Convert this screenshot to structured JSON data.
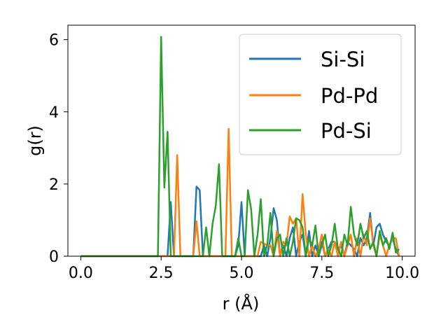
{
  "chart_data": {
    "type": "line",
    "xlabel": "r (Å)",
    "ylabel": "g(r)",
    "xlim": [
      -0.4,
      10.4
    ],
    "ylim": [
      0,
      6.4
    ],
    "xticks": [
      0.0,
      2.5,
      5.0,
      7.5,
      10.0
    ],
    "xtick_labels": [
      "0.0",
      "2.5",
      "5.0",
      "7.5",
      "10.0"
    ],
    "yticks": [
      0,
      2,
      4,
      6
    ],
    "ytick_labels": [
      "0",
      "2",
      "4",
      "6"
    ],
    "grid": false,
    "legend_position": "top-right",
    "series": [
      {
        "name": "Si-Si",
        "color": "#1f77b4",
        "points": [
          [
            0.0,
            0
          ],
          [
            2.6,
            0
          ],
          [
            2.7,
            0
          ],
          [
            2.8,
            1.5
          ],
          [
            2.9,
            0
          ],
          [
            3.0,
            0
          ],
          [
            3.1,
            0
          ],
          [
            3.2,
            0
          ],
          [
            3.3,
            0
          ],
          [
            3.4,
            0
          ],
          [
            3.5,
            0
          ],
          [
            3.6,
            1.93
          ],
          [
            3.7,
            1.83
          ],
          [
            3.8,
            0
          ],
          [
            3.9,
            0
          ],
          [
            4.0,
            0
          ],
          [
            4.1,
            0
          ],
          [
            4.2,
            0
          ],
          [
            4.3,
            0
          ],
          [
            4.4,
            0
          ],
          [
            4.5,
            0
          ],
          [
            4.6,
            0
          ],
          [
            4.7,
            0
          ],
          [
            4.8,
            0
          ],
          [
            4.9,
            0.3
          ],
          [
            5.0,
            1.5
          ],
          [
            5.1,
            0
          ],
          [
            5.2,
            0
          ],
          [
            5.3,
            0
          ],
          [
            5.4,
            0
          ],
          [
            5.5,
            0
          ],
          [
            5.6,
            0
          ],
          [
            5.7,
            0.3
          ],
          [
            5.8,
            0
          ],
          [
            5.9,
            0.5
          ],
          [
            6.0,
            1.33
          ],
          [
            6.1,
            1.0
          ],
          [
            6.2,
            0
          ],
          [
            6.3,
            0.3
          ],
          [
            6.4,
            0
          ],
          [
            6.5,
            0.5
          ],
          [
            6.6,
            0.8
          ],
          [
            6.7,
            0
          ],
          [
            6.8,
            0.4
          ],
          [
            6.9,
            0.6
          ],
          [
            7.0,
            0
          ],
          [
            7.1,
            0.7
          ],
          [
            7.2,
            0
          ],
          [
            7.3,
            0.3
          ],
          [
            7.4,
            0
          ],
          [
            7.5,
            0.4
          ],
          [
            7.6,
            0
          ],
          [
            7.7,
            0.2
          ],
          [
            7.8,
            0.4
          ],
          [
            7.9,
            0.4
          ],
          [
            8.0,
            0.2
          ],
          [
            8.1,
            0.3
          ],
          [
            8.2,
            0
          ],
          [
            8.3,
            0.4
          ],
          [
            8.4,
            0.3
          ],
          [
            8.5,
            0.2
          ],
          [
            8.6,
            0
          ],
          [
            8.7,
            0.5
          ],
          [
            8.8,
            0.3
          ],
          [
            8.9,
            0.5
          ],
          [
            9.0,
            1.2
          ],
          [
            9.1,
            0.3
          ],
          [
            9.2,
            0.8
          ],
          [
            9.3,
            0.9
          ],
          [
            9.4,
            0.6
          ],
          [
            9.5,
            0.4
          ],
          [
            9.6,
            0.3
          ],
          [
            9.7,
            0.5
          ],
          [
            9.8,
            0.2
          ],
          [
            9.9,
            0
          ]
        ]
      },
      {
        "name": "Pd-Pd",
        "color": "#ff7f0e",
        "points": [
          [
            0.0,
            0
          ],
          [
            2.7,
            0
          ],
          [
            2.8,
            0
          ],
          [
            2.9,
            0
          ],
          [
            3.0,
            2.8
          ],
          [
            3.1,
            0
          ],
          [
            3.2,
            0
          ],
          [
            3.3,
            0
          ],
          [
            3.4,
            0
          ],
          [
            3.5,
            0
          ],
          [
            3.6,
            0.97
          ],
          [
            3.7,
            0
          ],
          [
            3.8,
            0
          ],
          [
            3.9,
            0
          ],
          [
            4.0,
            0
          ],
          [
            4.1,
            0
          ],
          [
            4.2,
            0
          ],
          [
            4.3,
            0
          ],
          [
            4.4,
            0
          ],
          [
            4.5,
            0
          ],
          [
            4.6,
            3.53
          ],
          [
            4.7,
            0
          ],
          [
            4.8,
            0
          ],
          [
            4.9,
            0
          ],
          [
            5.0,
            0
          ],
          [
            5.1,
            0
          ],
          [
            5.2,
            0
          ],
          [
            5.3,
            0
          ],
          [
            5.4,
            0
          ],
          [
            5.5,
            0
          ],
          [
            5.6,
            0.4
          ],
          [
            5.7,
            0.35
          ],
          [
            5.8,
            0.3
          ],
          [
            5.9,
            0.3
          ],
          [
            6.0,
            0
          ],
          [
            6.1,
            0.7
          ],
          [
            6.2,
            0
          ],
          [
            6.3,
            0.4
          ],
          [
            6.4,
            0.3
          ],
          [
            6.5,
            1.1
          ],
          [
            6.6,
            0.9
          ],
          [
            6.7,
            1.05
          ],
          [
            6.8,
            0
          ],
          [
            6.9,
            1.72
          ],
          [
            7.0,
            0.6
          ],
          [
            7.1,
            0
          ],
          [
            7.2,
            0.3
          ],
          [
            7.3,
            0
          ],
          [
            7.4,
            0.2
          ],
          [
            7.5,
            0.6
          ],
          [
            7.6,
            0
          ],
          [
            7.7,
            0.2
          ],
          [
            7.8,
            0
          ],
          [
            7.9,
            0.4
          ],
          [
            8.0,
            0
          ],
          [
            8.1,
            0.4
          ],
          [
            8.2,
            0
          ],
          [
            8.3,
            0.3
          ],
          [
            8.4,
            0.6
          ],
          [
            8.5,
            0
          ],
          [
            8.6,
            0.5
          ],
          [
            8.7,
            0
          ],
          [
            8.8,
            0.6
          ],
          [
            8.9,
            0.3
          ],
          [
            9.0,
            1.05
          ],
          [
            9.1,
            0.3
          ],
          [
            9.2,
            0
          ],
          [
            9.3,
            0.6
          ],
          [
            9.4,
            0.3
          ],
          [
            9.5,
            0
          ],
          [
            9.6,
            0.3
          ],
          [
            9.7,
            0.5
          ],
          [
            9.8,
            0.5
          ],
          [
            9.9,
            0
          ]
        ]
      },
      {
        "name": "Pd-Si",
        "color": "#2ca02c",
        "points": [
          [
            0.0,
            0
          ],
          [
            2.3,
            0
          ],
          [
            2.4,
            0
          ],
          [
            2.5,
            6.08
          ],
          [
            2.6,
            1.9
          ],
          [
            2.7,
            3.45
          ],
          [
            2.8,
            0
          ],
          [
            2.9,
            0
          ],
          [
            3.0,
            0
          ],
          [
            3.1,
            0
          ],
          [
            3.2,
            0
          ],
          [
            3.3,
            0
          ],
          [
            3.4,
            0
          ],
          [
            3.5,
            0
          ],
          [
            3.6,
            0
          ],
          [
            3.7,
            0
          ],
          [
            3.8,
            0
          ],
          [
            3.9,
            0.8
          ],
          [
            4.0,
            0
          ],
          [
            4.1,
            0.9
          ],
          [
            4.2,
            1.4
          ],
          [
            4.3,
            2.55
          ],
          [
            4.4,
            0
          ],
          [
            4.5,
            0
          ],
          [
            4.6,
            0
          ],
          [
            4.7,
            0
          ],
          [
            4.8,
            0
          ],
          [
            4.9,
            0.5
          ],
          [
            5.0,
            0
          ],
          [
            5.1,
            0
          ],
          [
            5.2,
            1.83
          ],
          [
            5.3,
            1.3
          ],
          [
            5.4,
            0
          ],
          [
            5.5,
            0.6
          ],
          [
            5.6,
            1.58
          ],
          [
            5.7,
            0
          ],
          [
            5.8,
            0.3
          ],
          [
            5.9,
            1.2
          ],
          [
            6.0,
            0
          ],
          [
            6.1,
            0.5
          ],
          [
            6.2,
            0.6
          ],
          [
            6.3,
            0
          ],
          [
            6.4,
            0.5
          ],
          [
            6.5,
            0
          ],
          [
            6.6,
            0.4
          ],
          [
            6.7,
            1.05
          ],
          [
            6.8,
            1.0
          ],
          [
            6.9,
            0.8
          ],
          [
            7.0,
            0
          ],
          [
            7.1,
            0.5
          ],
          [
            7.2,
            0.3
          ],
          [
            7.3,
            0.85
          ],
          [
            7.4,
            0
          ],
          [
            7.5,
            0.3
          ],
          [
            7.6,
            0.6
          ],
          [
            7.7,
            0
          ],
          [
            7.8,
            0.3
          ],
          [
            7.9,
            0.9
          ],
          [
            8.0,
            0.2
          ],
          [
            8.1,
            0
          ],
          [
            8.2,
            0.6
          ],
          [
            8.3,
            0.3
          ],
          [
            8.4,
            1.37
          ],
          [
            8.5,
            0.6
          ],
          [
            8.6,
            0.3
          ],
          [
            8.7,
            0.9
          ],
          [
            8.8,
            0.5
          ],
          [
            8.9,
            0.7
          ],
          [
            9.0,
            0.2
          ],
          [
            9.1,
            0.4
          ],
          [
            9.2,
            0
          ],
          [
            9.3,
            0.7
          ],
          [
            9.4,
            0.3
          ],
          [
            9.5,
            0.5
          ],
          [
            9.6,
            0.2
          ],
          [
            9.7,
            0.65
          ],
          [
            9.8,
            0.1
          ],
          [
            9.9,
            0.2
          ]
        ]
      }
    ]
  }
}
